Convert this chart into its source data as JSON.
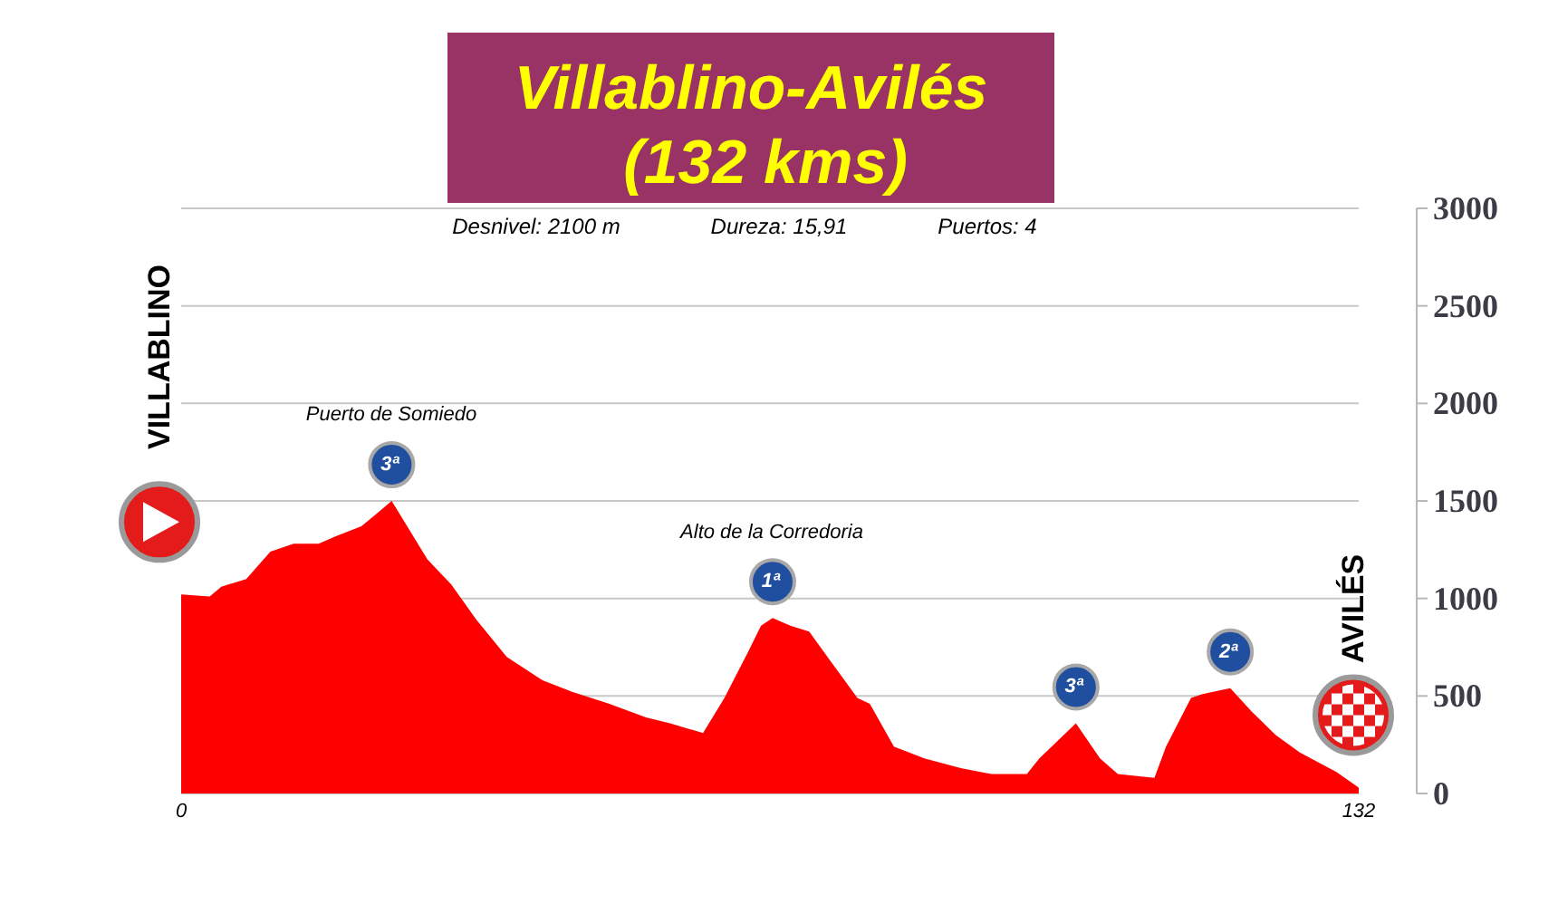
{
  "chart_data": {
    "type": "area",
    "title": "Villablino-Avilés\n(132 kms)",
    "annotations": [
      "Desnivel: 2100 m",
      "Dureza: 15,91",
      "Puertos: 4",
      "VILLABLINO",
      "AVILÉS",
      "Puerto de Somiedo",
      "Alto de la Corredoria",
      {
        "text": "3ª",
        "x": 23.6,
        "y": 1500
      },
      {
        "text": "1ª",
        "x": 66.3,
        "y": 900
      },
      {
        "text": "3ª",
        "x": 100.3,
        "y": 360
      },
      {
        "text": "2ª",
        "x": 117.6,
        "y": 540
      }
    ],
    "x": [
      0,
      3.2,
      4.5,
      7.3,
      10,
      12.6,
      15.4,
      17.4,
      20.2,
      21.8,
      23.6,
      25.6,
      27.6,
      30.3,
      33.1,
      36.5,
      40.5,
      43.9,
      48,
      52.1,
      54.8,
      58.5,
      60.9,
      63.6,
      65,
      66.3,
      68.3,
      70.4,
      73.1,
      75.8,
      77.2,
      79.9,
      83.3,
      87.4,
      90.8,
      94.8,
      96.2,
      100.3,
      103,
      105,
      109.1,
      110.4,
      113.2,
      114.5,
      117.6,
      120,
      122.7,
      125.4,
      129.5,
      132
    ],
    "values": [
      1020,
      1010,
      1060,
      1100,
      1240,
      1280,
      1280,
      1320,
      1370,
      1430,
      1500,
      1350,
      1200,
      1070,
      890,
      700,
      580,
      520,
      460,
      390,
      360,
      310,
      490,
      730,
      860,
      900,
      860,
      830,
      660,
      490,
      460,
      240,
      180,
      130,
      100,
      100,
      180,
      360,
      180,
      100,
      80,
      240,
      490,
      510,
      540,
      420,
      300,
      210,
      110,
      30
    ],
    "color": "#ff0000",
    "xlim": [
      0,
      132
    ],
    "xticks": [
      0,
      132
    ],
    "ylim": [
      0,
      3000
    ],
    "yticks": [
      0,
      500,
      1000,
      1500,
      2000,
      2500,
      3000
    ],
    "grid": "y"
  }
}
